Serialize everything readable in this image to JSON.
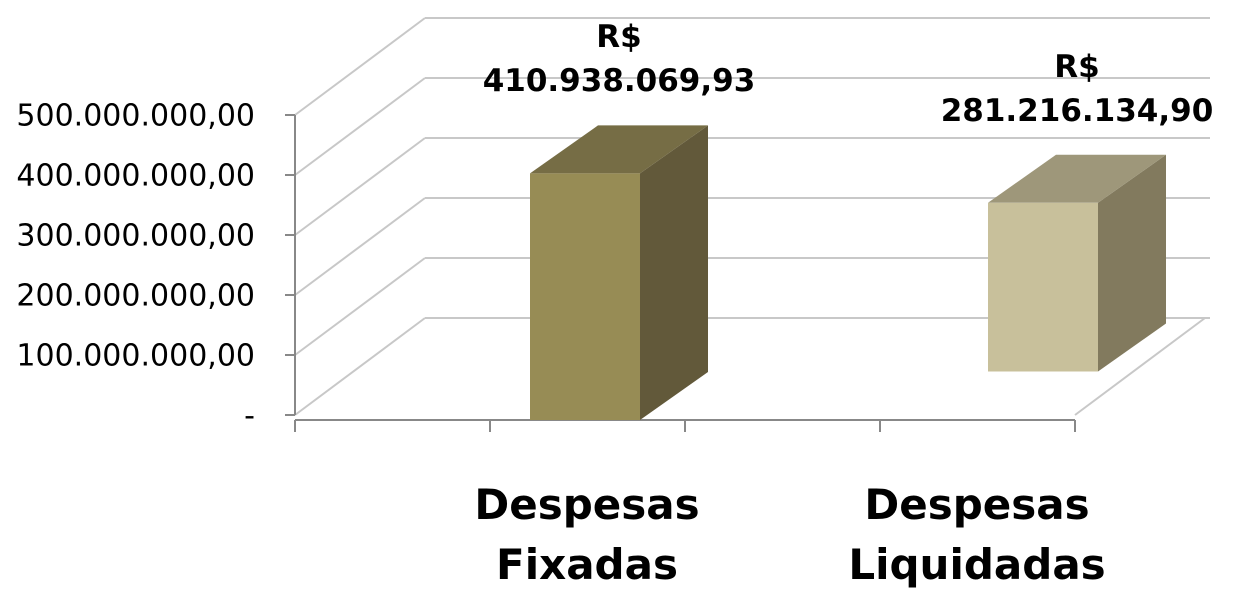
{
  "chart_data": {
    "type": "bar3d",
    "categories": [
      "Despesas Fixadas",
      "Despesas Liquidadas"
    ],
    "values": [
      410938069.93,
      281216134.9
    ],
    "value_labels": [
      "R$ 410.938.069,93",
      "R$ 281.216.134,90"
    ],
    "colors": [
      "#978c55",
      "#c8c09b"
    ],
    "ylim": [
      0,
      500000000
    ],
    "yticks": [
      {
        "value": 0,
        "label": "-"
      },
      {
        "value": 100000000,
        "label": "100.000.000,00"
      },
      {
        "value": 200000000,
        "label": "200.000.000,00"
      },
      {
        "value": 300000000,
        "label": "300.000.000,00"
      },
      {
        "value": 400000000,
        "label": "400.000.000,00"
      },
      {
        "value": 500000000,
        "label": "500.000.000,00"
      }
    ],
    "grid": true
  }
}
